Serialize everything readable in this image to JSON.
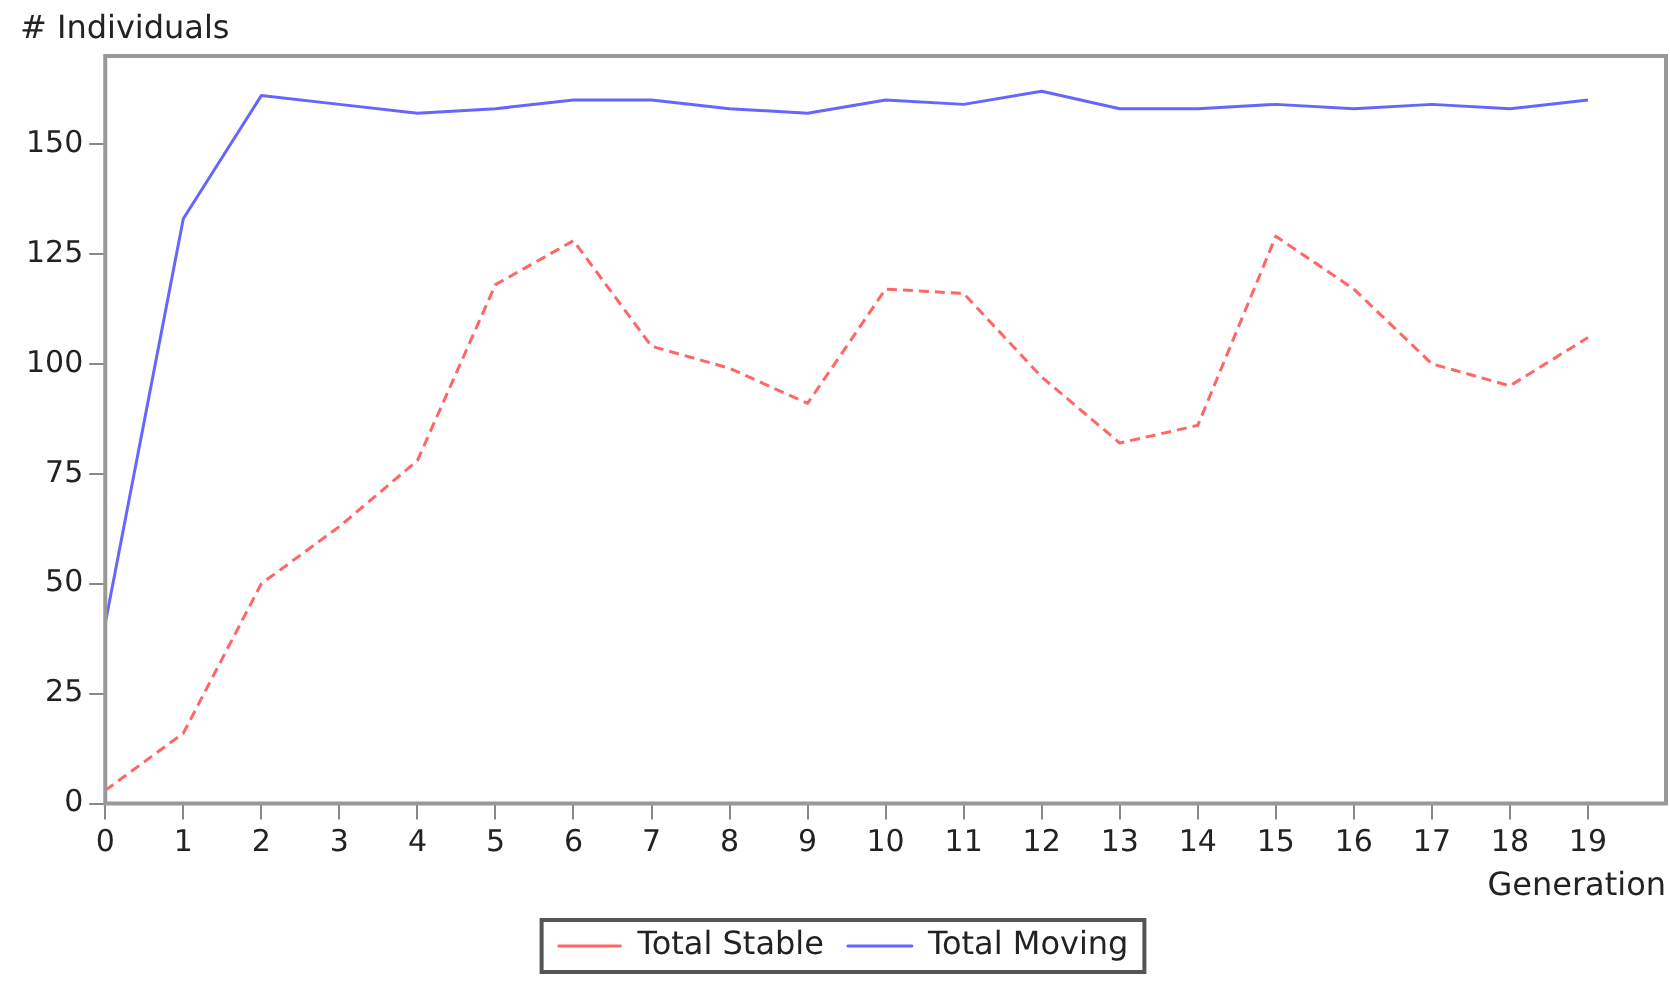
{
  "chart_data": {
    "type": "line",
    "xlabel": "Generation",
    "ylabel": "# Individuals",
    "x": [
      0,
      1,
      2,
      3,
      4,
      5,
      6,
      7,
      8,
      9,
      10,
      11,
      12,
      13,
      14,
      15,
      16,
      17,
      18,
      19
    ],
    "xlim": [
      0,
      20
    ],
    "xticks": [
      0,
      1,
      2,
      3,
      4,
      5,
      6,
      7,
      8,
      9,
      10,
      11,
      12,
      13,
      14,
      15,
      16,
      17,
      18,
      19
    ],
    "ylim": [
      0,
      170
    ],
    "yticks": [
      0,
      25,
      50,
      75,
      100,
      125,
      150
    ],
    "grid": false,
    "legend": "bottom",
    "marker": "none",
    "series": [
      {
        "name": "Total Stable",
        "color": "#ff6666",
        "line_style": "dashed",
        "values": [
          3,
          16,
          50,
          63,
          78,
          118,
          128,
          104,
          99,
          91,
          117,
          116,
          97,
          82,
          86,
          129,
          117,
          100,
          95,
          106
        ]
      },
      {
        "name": "Total Moving",
        "color": "#6666ff",
        "line_style": "solid",
        "values": [
          41,
          133,
          161,
          159,
          157,
          158,
          160,
          160,
          158,
          157,
          160,
          159,
          162,
          158,
          158,
          159,
          158,
          159,
          158,
          160
        ]
      }
    ]
  }
}
